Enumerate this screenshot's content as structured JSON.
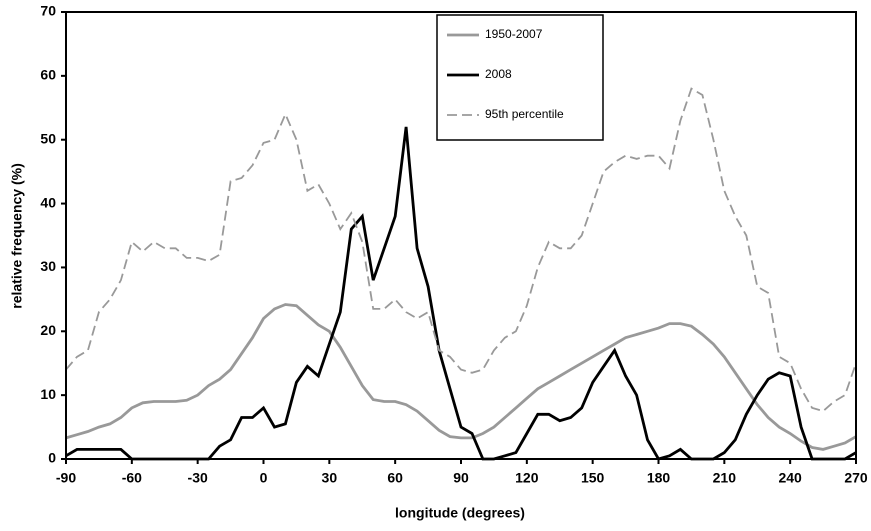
{
  "chart_data": {
    "type": "line",
    "xlabel": "longitude (degrees)",
    "ylabel": "relative frequency (%)",
    "x": [
      -90,
      -85,
      -80,
      -75,
      -70,
      -65,
      -60,
      -55,
      -50,
      -45,
      -40,
      -35,
      -30,
      -25,
      -20,
      -15,
      -10,
      -5,
      0,
      5,
      10,
      15,
      20,
      25,
      30,
      35,
      40,
      45,
      50,
      55,
      60,
      65,
      70,
      75,
      80,
      85,
      90,
      95,
      100,
      105,
      110,
      115,
      120,
      125,
      130,
      135,
      140,
      145,
      150,
      155,
      160,
      165,
      170,
      175,
      180,
      185,
      190,
      195,
      200,
      205,
      210,
      215,
      220,
      225,
      230,
      235,
      240,
      245,
      250,
      255,
      260,
      265,
      270
    ],
    "series": [
      {
        "name": "1950-2007",
        "color": "#999999",
        "dash": false,
        "values": [
          3.3,
          3.8,
          4.3,
          5,
          5.5,
          6.5,
          8,
          8.8,
          9,
          9,
          9,
          9.2,
          10,
          11.5,
          12.5,
          14,
          16.5,
          19,
          22,
          23.5,
          24.2,
          24,
          22.5,
          21,
          20,
          17.5,
          14.5,
          11.5,
          9.3,
          9,
          9,
          8.5,
          7.5,
          6,
          4.5,
          3.5,
          3.3,
          3.3,
          4,
          5,
          6.5,
          8,
          9.5,
          11,
          12,
          13,
          14,
          15,
          16,
          17,
          18,
          19,
          19.5,
          20,
          20.5,
          21.2,
          21.2,
          20.8,
          19.5,
          18,
          16,
          13.5,
          11,
          8.5,
          6.5,
          5,
          4,
          2.8,
          1.8,
          1.5,
          2,
          2.5,
          3.5
        ]
      },
      {
        "name": "2008",
        "color": "#000000",
        "dash": false,
        "values": [
          0.5,
          1.5,
          1.5,
          1.5,
          1.5,
          1.5,
          0,
          0,
          0,
          0,
          0,
          0,
          0,
          0,
          2,
          3,
          6.5,
          6.5,
          8,
          5,
          5.5,
          12,
          14.5,
          13,
          18,
          23,
          36,
          38,
          28,
          33,
          38,
          52,
          33,
          27,
          17,
          11,
          5,
          4,
          0,
          0,
          0.5,
          1,
          4,
          7,
          7,
          6,
          6.5,
          8,
          12,
          14.5,
          17,
          13,
          10,
          3,
          0,
          0.5,
          1.5,
          0,
          0,
          0,
          1,
          3,
          7,
          10,
          12.5,
          13.5,
          13,
          5,
          0,
          0,
          0,
          0,
          1
        ]
      },
      {
        "name": "95th percentile",
        "color": "#999999",
        "dash": true,
        "values": [
          14,
          16,
          17,
          23,
          25,
          28,
          34,
          32.5,
          34,
          33,
          33,
          31.5,
          31.5,
          31,
          32,
          43.5,
          44,
          46,
          49.5,
          50,
          54,
          50,
          42,
          43,
          40,
          36,
          38.5,
          34,
          23.5,
          23.5,
          25,
          23,
          22,
          23,
          17,
          16,
          14,
          13.5,
          14,
          17,
          19,
          20,
          24,
          30,
          34,
          33,
          33,
          35,
          40,
          45,
          46.5,
          47.5,
          47,
          47.5,
          47.5,
          45.5,
          53,
          58,
          57,
          50,
          42,
          38,
          35,
          27,
          26,
          16,
          15,
          11,
          8,
          7.5,
          9,
          10,
          15
        ]
      }
    ],
    "xlim": [
      -90,
      270
    ],
    "xticks": [
      -90,
      -60,
      -30,
      0,
      30,
      60,
      90,
      120,
      150,
      180,
      210,
      240,
      270
    ],
    "ylim": [
      0,
      70
    ],
    "yticks": [
      0,
      10,
      20,
      30,
      40,
      50,
      60,
      70
    ],
    "legend": "top center"
  }
}
